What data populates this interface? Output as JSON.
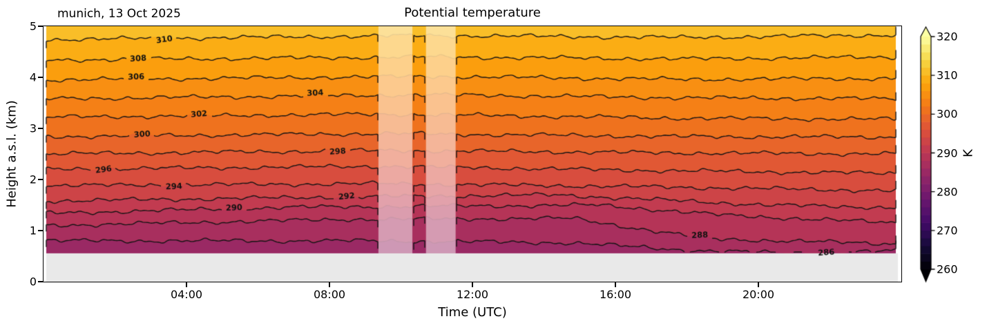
{
  "figure": {
    "title": "Potential temperature",
    "subtitle_left": "munich, 13 Oct 2025"
  },
  "axes": {
    "xlabel": "Time (UTC)",
    "ylabel": "Height a.s.l. (km)",
    "x_range_hours": [
      0,
      24
    ],
    "y_range_km": [
      0,
      5
    ],
    "x_ticks": [
      {
        "hour": 4,
        "label": "04:00"
      },
      {
        "hour": 8,
        "label": "08:00"
      },
      {
        "hour": 12,
        "label": "12:00"
      },
      {
        "hour": 16,
        "label": "16:00"
      },
      {
        "hour": 20,
        "label": "20:00"
      }
    ],
    "y_ticks": [
      {
        "km": 0,
        "label": "0"
      },
      {
        "km": 1,
        "label": "1"
      },
      {
        "km": 2,
        "label": "2"
      },
      {
        "km": 3,
        "label": "3"
      },
      {
        "km": 4,
        "label": "4"
      },
      {
        "km": 5,
        "label": "5"
      }
    ]
  },
  "colorbar": {
    "unit_label": "K",
    "vmin": 260,
    "vmax": 320,
    "level_step": 2,
    "extend": "both",
    "ticks": [
      {
        "value": 320,
        "label": "320"
      },
      {
        "value": 310,
        "label": "310"
      },
      {
        "value": 300,
        "label": "300"
      },
      {
        "value": 290,
        "label": "290"
      },
      {
        "value": 280,
        "label": "280"
      },
      {
        "value": 270,
        "label": "270"
      },
      {
        "value": 260,
        "label": "260"
      }
    ]
  },
  "colormap": {
    "name": "inferno",
    "anchors": [
      "#000004",
      "#160b39",
      "#420a68",
      "#6a176e",
      "#932667",
      "#bc3754",
      "#dd513a",
      "#f37819",
      "#fca50a",
      "#f6d746",
      "#fcffa4"
    ]
  },
  "style": {
    "ground_color": "#e9e9e9",
    "contour_line_color": "#141414",
    "missing_band_overlay": "rgba(255,255,255,0.52)",
    "contour_label_color": "#111111"
  },
  "chart_data": {
    "type": "heatmap",
    "variable": "Potential temperature",
    "unit": "K",
    "station": "munich",
    "date": "13 Oct 2025",
    "surface_height_km": 0.555,
    "contour_level_step_K": 2,
    "contour_levels_K": [
      286,
      288,
      290,
      292,
      294,
      296,
      298,
      300,
      302,
      304,
      306,
      308,
      310
    ],
    "missing_data_hours": [
      [
        9.37,
        10.32
      ],
      [
        10.7,
        11.53
      ]
    ],
    "wiggle_amplitudes_km": [
      0.02,
      0.012,
      0.007,
      0.016
    ],
    "contours": [
      {
        "level": 286,
        "profile_km": [
          [
            0,
            0.8
          ],
          [
            0.4,
            0.8
          ],
          [
            0.62,
            0.76
          ],
          [
            0.75,
            0.62
          ],
          [
            0.87,
            0.56
          ],
          [
            1,
            0.6
          ]
        ],
        "label_hour": 21.9,
        "label_angle_deg": -4
      },
      {
        "level": 288,
        "profile_km": [
          [
            0,
            1.1
          ],
          [
            0.35,
            1.22
          ],
          [
            0.62,
            1.24
          ],
          [
            0.72,
            0.98
          ],
          [
            0.78,
            0.84
          ],
          [
            1,
            0.74
          ]
        ],
        "label_hour": 18.36,
        "label_angle_deg": -2
      },
      {
        "level": 290,
        "profile_km": [
          [
            0,
            1.34
          ],
          [
            0.3,
            1.46
          ],
          [
            0.65,
            1.5
          ],
          [
            0.8,
            1.3
          ],
          [
            1,
            1.15
          ]
        ],
        "label_hour": 5.33,
        "label_angle_deg": -2
      },
      {
        "level": 292,
        "profile_km": [
          [
            0,
            1.58
          ],
          [
            0.35,
            1.66
          ],
          [
            0.6,
            1.7
          ],
          [
            0.85,
            1.5
          ],
          [
            1,
            1.45
          ]
        ],
        "label_hour": 8.48,
        "label_angle_deg": -5
      },
      {
        "level": 294,
        "profile_km": [
          [
            0,
            1.88
          ],
          [
            0.4,
            1.92
          ],
          [
            0.7,
            1.86
          ],
          [
            1,
            1.78
          ]
        ],
        "label_hour": 3.65,
        "label_angle_deg": -3
      },
      {
        "level": 296,
        "profile_km": [
          [
            0,
            2.2
          ],
          [
            0.4,
            2.26
          ],
          [
            0.7,
            2.18
          ],
          [
            1,
            2.12
          ]
        ],
        "label_hour": 1.68,
        "label_angle_deg": -8
      },
      {
        "level": 298,
        "profile_km": [
          [
            0,
            2.5
          ],
          [
            0.4,
            2.57
          ],
          [
            0.75,
            2.52
          ],
          [
            1,
            2.5
          ]
        ],
        "label_hour": 8.23,
        "label_angle_deg": -4
      },
      {
        "level": 300,
        "profile_km": [
          [
            0,
            2.84
          ],
          [
            0.4,
            2.9
          ],
          [
            0.75,
            2.84
          ],
          [
            1,
            2.83
          ]
        ],
        "label_hour": 2.76,
        "label_angle_deg": -4
      },
      {
        "level": 302,
        "profile_km": [
          [
            0,
            3.22
          ],
          [
            0.4,
            3.28
          ],
          [
            0.75,
            3.2
          ],
          [
            1,
            3.18
          ]
        ],
        "label_hour": 4.35,
        "label_angle_deg": -5
      },
      {
        "level": 304,
        "profile_km": [
          [
            0,
            3.58
          ],
          [
            0.45,
            3.66
          ],
          [
            0.75,
            3.6
          ],
          [
            1,
            3.58
          ]
        ],
        "label_hour": 7.6,
        "label_angle_deg": -3
      },
      {
        "level": 306,
        "profile_km": [
          [
            0,
            3.95
          ],
          [
            0.45,
            4.02
          ],
          [
            0.75,
            3.96
          ],
          [
            1,
            3.98
          ]
        ],
        "label_hour": 2.59,
        "label_angle_deg": -2
      },
      {
        "level": 308,
        "profile_km": [
          [
            0,
            4.34
          ],
          [
            0.45,
            4.4
          ],
          [
            0.75,
            4.36
          ],
          [
            1,
            4.4
          ]
        ],
        "label_hour": 2.65,
        "label_angle_deg": -3
      },
      {
        "level": 310,
        "profile_km": [
          [
            0,
            4.74
          ],
          [
            0.45,
            4.82
          ],
          [
            0.75,
            4.78
          ],
          [
            1,
            4.83
          ]
        ],
        "label_hour": 3.38,
        "label_angle_deg": -8
      }
    ]
  }
}
